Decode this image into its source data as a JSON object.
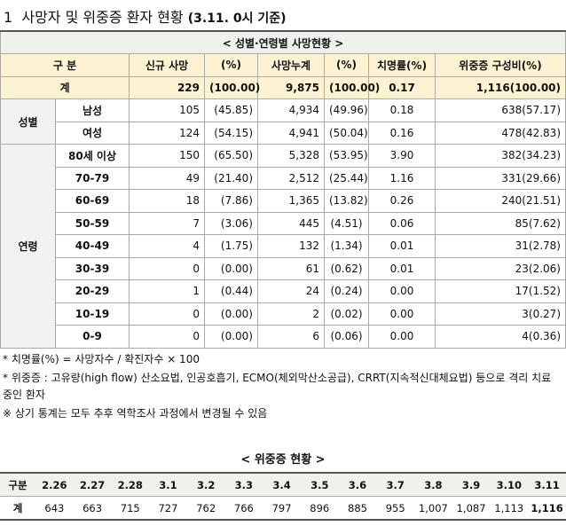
{
  "title": {
    "main": "1  사망자 및 위중증 환자 현황",
    "note": "(3.11. 0시 기준)"
  },
  "death_table": {
    "caption": "< 성별·연령별 사망현황 >",
    "header": [
      "구 분",
      "신규 사망",
      "(%)",
      "사망누계",
      "(%)",
      "치명률(%)",
      "위중증    구성비(%)"
    ],
    "total": {
      "label": "계",
      "cells": [
        "229",
        "(100.00)",
        "9,875",
        "(100.00)",
        "0.17",
        "1,116(100.00)"
      ]
    },
    "groups": [
      {
        "label": "성별",
        "rows": [
          {
            "label": "남성",
            "cells": [
              "105",
              "(45.85)",
              "4,934",
              "(49.96)",
              "0.18",
              "638(57.17)"
            ]
          },
          {
            "label": "여성",
            "cells": [
              "124",
              "(54.15)",
              "4,941",
              "(50.04)",
              "0.16",
              "478(42.83)"
            ]
          }
        ]
      },
      {
        "label": "연령",
        "rows": [
          {
            "label": "80세 이상",
            "cells": [
              "150",
              "(65.50)",
              "5,328",
              "(53.95)",
              "3.90",
              "382(34.23)"
            ]
          },
          {
            "label": "70-79",
            "cells": [
              "49",
              "(21.40)",
              "2,512",
              "(25.44)",
              "1.16",
              "331(29.66)"
            ]
          },
          {
            "label": "60-69",
            "cells": [
              "18",
              "(7.86)",
              "1,365",
              "(13.82)",
              "0.26",
              "240(21.51)"
            ]
          },
          {
            "label": "50-59",
            "cells": [
              "7",
              "(3.06)",
              "445",
              "(4.51)",
              "0.06",
              "85(7.62)"
            ]
          },
          {
            "label": "40-49",
            "cells": [
              "4",
              "(1.75)",
              "132",
              "(1.34)",
              "0.01",
              "31(2.78)"
            ]
          },
          {
            "label": "30-39",
            "cells": [
              "0",
              "(0.00)",
              "61",
              "(0.62)",
              "0.01",
              "23(2.06)"
            ]
          },
          {
            "label": "20-29",
            "cells": [
              "1",
              "(0.44)",
              "24",
              "(0.24)",
              "0.00",
              "17(1.52)"
            ]
          },
          {
            "label": "10-19",
            "cells": [
              "0",
              "(0.00)",
              "2",
              "(0.02)",
              "0.00",
              "3(0.27)"
            ]
          },
          {
            "label": "0-9",
            "cells": [
              "0",
              "(0.00)",
              "6",
              "(0.06)",
              "0.00",
              "4(0.36)"
            ]
          }
        ]
      }
    ]
  },
  "notes": [
    "* 치명률(%) = 사망자수 / 확진자수 × 100",
    "* 위중증 : 고유량(high flow) 산소요법, 인공호흡기, ECMO(체외막산소공급), CRRT(지속적신대체요법) 등으로 격리 치료 중인 환자",
    "※ 상기 통계는 모두 추후 역학조사 과정에서 변경될 수 있음"
  ],
  "critical_table": {
    "caption": "< 위중증 현황 >",
    "header_label": "구분",
    "dates": [
      "2.26",
      "2.27",
      "2.28",
      "3.1",
      "3.2",
      "3.3",
      "3.4",
      "3.5",
      "3.6",
      "3.7",
      "3.8",
      "3.9",
      "3.10",
      "3.11"
    ],
    "row_label": "계",
    "values": [
      "643",
      "663",
      "715",
      "727",
      "762",
      "766",
      "797",
      "896",
      "885",
      "955",
      "1,007",
      "1,087",
      "1,113",
      "1,116"
    ]
  }
}
